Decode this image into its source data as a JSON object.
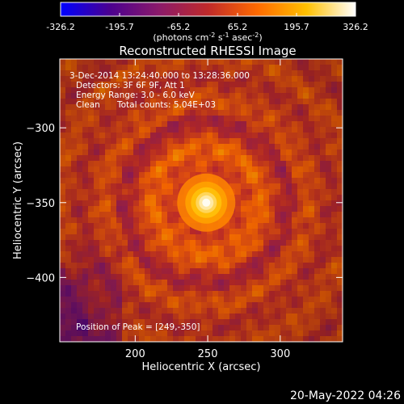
{
  "chart_data": {
    "type": "heatmap",
    "title": "Reconstructed RHESSI Image",
    "xlabel": "Heliocentric X (arcsec)",
    "ylabel": "Heliocentric Y (arcsec)",
    "xlim": [
      148,
      343
    ],
    "ylim": [
      -443,
      -254
    ],
    "xticks": [
      200,
      250,
      300
    ],
    "yticks": [
      -300,
      -350,
      -400
    ],
    "colorbar": {
      "min": -326.2,
      "max": 326.2,
      "ticks": [
        "-326.2",
        "-195.7",
        "-65.2",
        "65.2",
        "195.7",
        "326.2"
      ],
      "unit_text": "(photons cm",
      "unit_sup1": "-2",
      "unit_mid": " s",
      "unit_sup2": "-1",
      "unit_mid2": " asec",
      "unit_sup3": "-2",
      "unit_end": ")",
      "colormap": [
        "#0000ff",
        "#4b0090",
        "#8b1a6a",
        "#c02a2a",
        "#ff6a00",
        "#ffc000",
        "#ffffff"
      ]
    },
    "annotations": {
      "time": "3-Dec-2014 13:24:40.000 to 13:28:36.000",
      "detectors": "Detectors: 3F 6F 9F, Att 1",
      "energy": "Energy Range: 3.0 - 6.0 keV",
      "method": "Clean",
      "counts": "Total counts: 5.04E+03",
      "peak": "Position of Peak = [249,-350]"
    },
    "peak": {
      "x": 249,
      "y": -350,
      "value": 326.2
    },
    "grid": false
  },
  "footer": {
    "date": "20-May-2022 04:26"
  }
}
